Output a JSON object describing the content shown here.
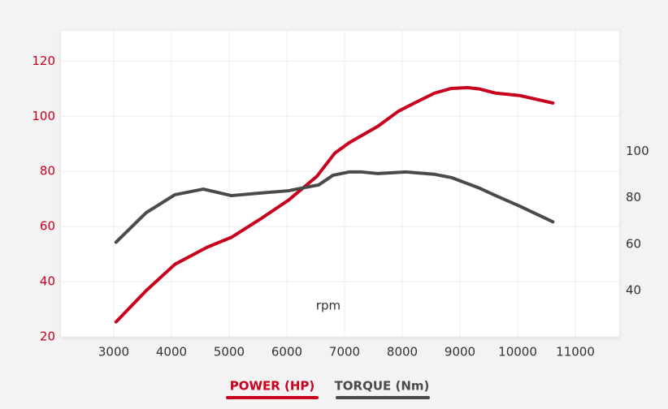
{
  "chart_data": {
    "type": "line",
    "x_label": "rpm",
    "xlim": [
      2085,
      11760
    ],
    "xticks": [
      3000,
      4000,
      5000,
      6000,
      7000,
      8000,
      9000,
      10000,
      11000
    ],
    "ylim": [
      20,
      131
    ],
    "yticks": [
      20,
      40,
      60,
      80,
      100,
      120
    ],
    "y2lim": [
      20,
      152
    ],
    "y2ticks": [
      40,
      60,
      80,
      100
    ],
    "grid": true,
    "series": [
      {
        "name": "POWER (HP)",
        "color": "#c8001e",
        "x": [
          3040,
          3560,
          4060,
          4620,
          5040,
          5540,
          6030,
          6520,
          6830,
          7080,
          7580,
          7930,
          8210,
          8560,
          8850,
          9130,
          9340,
          9620,
          10040,
          10610
        ],
        "values": [
          25.4,
          36.7,
          46.3,
          52.5,
          56.1,
          62.7,
          69.6,
          78.2,
          86.6,
          90.4,
          96.4,
          101.8,
          104.8,
          108.4,
          110.1,
          110.4,
          109.9,
          108.4,
          107.5,
          104.8
        ]
      },
      {
        "name": "TORQUE (Nm)",
        "color": "#4a4a4a",
        "axis": "y2",
        "x": [
          3040,
          3560,
          4060,
          4550,
          5040,
          5540,
          6030,
          6310,
          6550,
          6800,
          7080,
          7300,
          7580,
          8070,
          8560,
          8850,
          9340,
          9620,
          10040,
          10610
        ],
        "values": [
          60.8,
          73.5,
          81.3,
          83.7,
          80.9,
          82.0,
          83.0,
          84.4,
          85.5,
          89.7,
          91.1,
          91.1,
          90.4,
          91.1,
          90.1,
          88.7,
          84.1,
          80.9,
          76.3,
          69.6
        ]
      }
    ]
  }
}
